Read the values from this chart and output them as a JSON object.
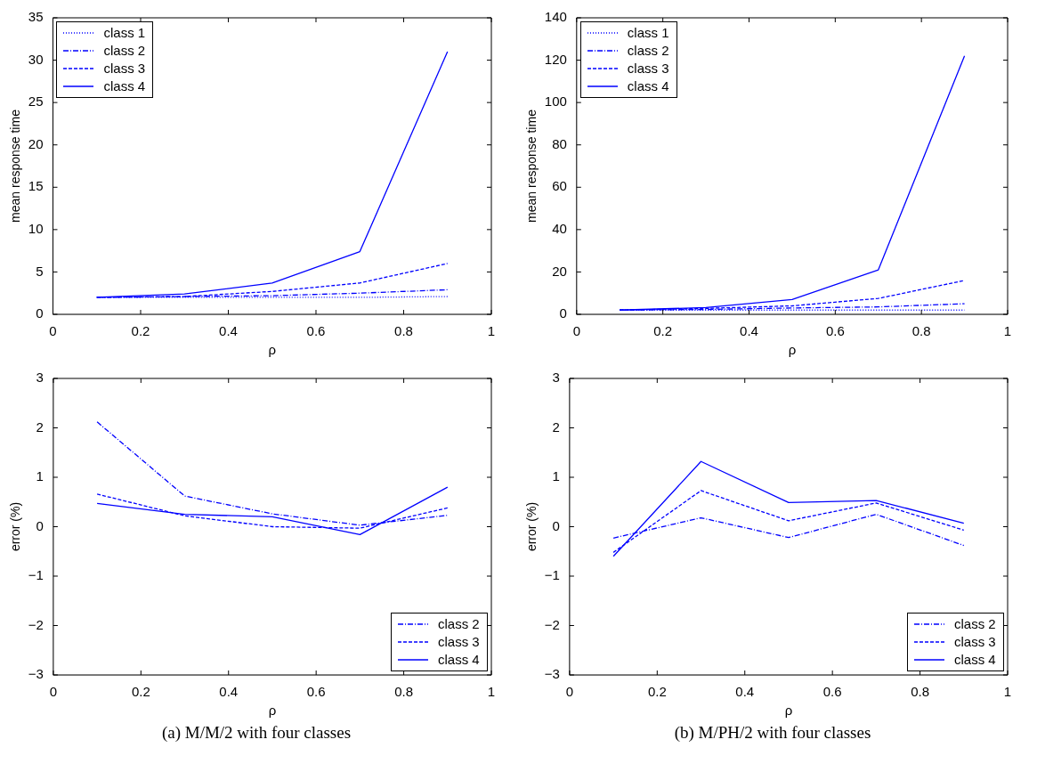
{
  "chart_data": [
    {
      "type": "line",
      "xlabel": "ρ",
      "ylabel": "mean response time",
      "x": [
        0.1,
        0.3,
        0.5,
        0.7,
        0.9
      ],
      "xlim": [
        0,
        1
      ],
      "xticks": [
        0,
        0.2,
        0.4,
        0.6,
        0.8,
        1
      ],
      "ylim": [
        0,
        35
      ],
      "yticks": [
        0,
        5,
        10,
        15,
        20,
        25,
        30,
        35
      ],
      "grid": false,
      "legend": "top left",
      "marker": "none",
      "series": [
        {
          "name": "class 1",
          "color": "#0000ff",
          "line_style": "dotted",
          "values": [
            2.0,
            2.0,
            2.0,
            2.0,
            2.1
          ]
        },
        {
          "name": "class 2",
          "color": "#0000ff",
          "line_style": "dashdot",
          "values": [
            2.0,
            2.1,
            2.2,
            2.5,
            2.9
          ]
        },
        {
          "name": "class 3",
          "color": "#0000ff",
          "line_style": "dashed",
          "values": [
            2.0,
            2.1,
            2.7,
            3.7,
            6.0
          ]
        },
        {
          "name": "class 4",
          "color": "#0000ff",
          "line_style": "solid",
          "values": [
            2.0,
            2.4,
            3.7,
            7.4,
            31.0
          ]
        }
      ]
    },
    {
      "type": "line",
      "xlabel": "ρ",
      "ylabel": "mean response time",
      "x": [
        0.1,
        0.3,
        0.5,
        0.7,
        0.9
      ],
      "xlim": [
        0,
        1
      ],
      "xticks": [
        0,
        0.2,
        0.4,
        0.6,
        0.8,
        1
      ],
      "ylim": [
        0,
        140
      ],
      "yticks": [
        0,
        20,
        40,
        60,
        80,
        100,
        120,
        140
      ],
      "grid": false,
      "legend": "top left",
      "marker": "none",
      "series": [
        {
          "name": "class 1",
          "color": "#0000ff",
          "line_style": "dotted",
          "values": [
            2,
            2,
            2,
            2,
            2
          ]
        },
        {
          "name": "class 2",
          "color": "#0000ff",
          "line_style": "dashdot",
          "values": [
            2,
            2.3,
            3,
            3.5,
            5
          ]
        },
        {
          "name": "class 3",
          "color": "#0000ff",
          "line_style": "dashed",
          "values": [
            2,
            2.8,
            4,
            7.5,
            16
          ]
        },
        {
          "name": "class 4",
          "color": "#0000ff",
          "line_style": "solid",
          "values": [
            2,
            3.2,
            7,
            21,
            122
          ]
        }
      ]
    },
    {
      "type": "line",
      "xlabel": "ρ",
      "ylabel": "error (%)",
      "x": [
        0.1,
        0.3,
        0.5,
        0.7,
        0.9
      ],
      "xlim": [
        0,
        1
      ],
      "xticks": [
        0,
        0.2,
        0.4,
        0.6,
        0.8,
        1
      ],
      "ylim": [
        -3,
        3
      ],
      "yticks": [
        -3,
        -2,
        -1,
        0,
        1,
        2,
        3
      ],
      "grid": false,
      "legend": "bottom right",
      "marker": "none",
      "annotations": [
        "(a) M/M/2 with four classes"
      ],
      "series": [
        {
          "name": "class 2",
          "color": "#0000ff",
          "line_style": "dashdot",
          "values": [
            2.12,
            0.62,
            0.26,
            0.03,
            0.23
          ]
        },
        {
          "name": "class 3",
          "color": "#0000ff",
          "line_style": "dashed",
          "values": [
            0.66,
            0.22,
            0.0,
            -0.03,
            0.38
          ]
        },
        {
          "name": "class 4",
          "color": "#0000ff",
          "line_style": "solid",
          "values": [
            0.47,
            0.25,
            0.2,
            -0.16,
            0.8
          ]
        }
      ]
    },
    {
      "type": "line",
      "xlabel": "ρ",
      "ylabel": "error (%)",
      "x": [
        0.1,
        0.3,
        0.5,
        0.7,
        0.9
      ],
      "xlim": [
        0,
        1
      ],
      "xticks": [
        0,
        0.2,
        0.4,
        0.6,
        0.8,
        1
      ],
      "ylim": [
        -3,
        3
      ],
      "yticks": [
        -3,
        -2,
        -1,
        0,
        1,
        2,
        3
      ],
      "grid": false,
      "legend": "bottom right",
      "marker": "none",
      "annotations": [
        "(b) M/PH/2 with four classes"
      ],
      "series": [
        {
          "name": "class 2",
          "color": "#0000ff",
          "line_style": "dashdot",
          "values": [
            -0.23,
            0.18,
            -0.22,
            0.25,
            -0.38
          ]
        },
        {
          "name": "class 3",
          "color": "#0000ff",
          "line_style": "dashed",
          "values": [
            -0.52,
            0.73,
            0.12,
            0.48,
            -0.07
          ]
        },
        {
          "name": "class 4",
          "color": "#0000ff",
          "line_style": "solid",
          "values": [
            -0.6,
            1.32,
            0.49,
            0.53,
            0.07
          ]
        }
      ]
    }
  ]
}
